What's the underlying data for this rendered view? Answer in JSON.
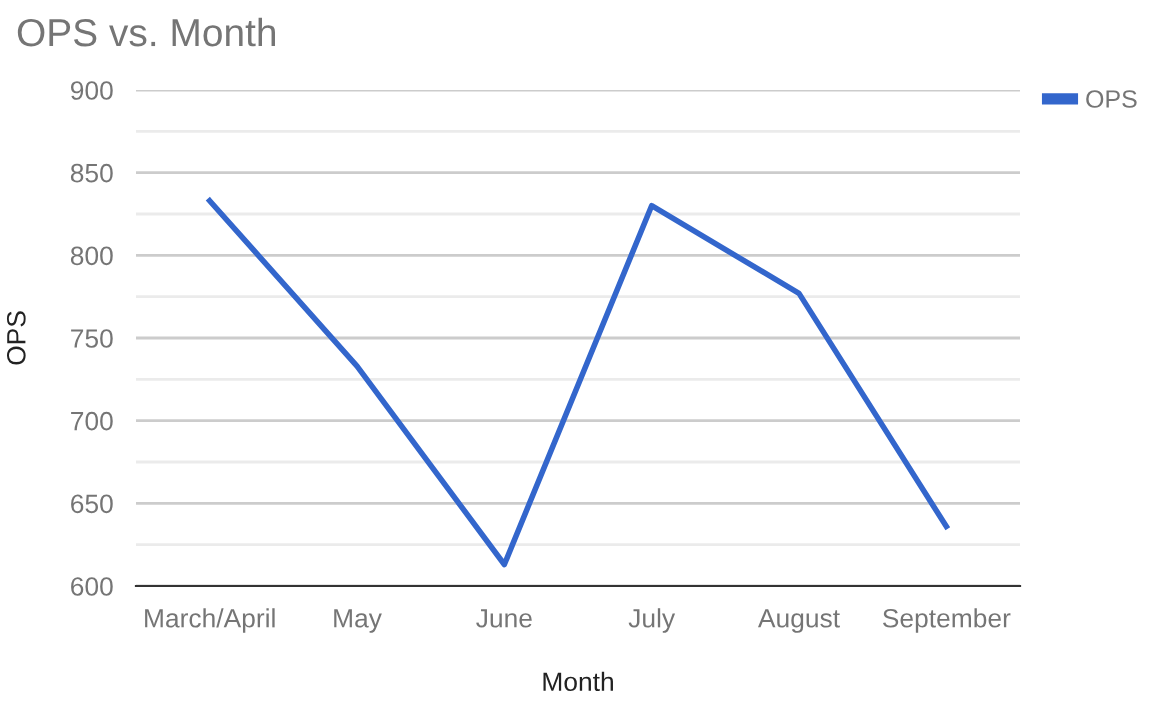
{
  "chart_data": {
    "type": "line",
    "title": "OPS vs. Month",
    "xlabel": "Month",
    "ylabel": "OPS",
    "categories": [
      "March/April",
      "May",
      "June",
      "July",
      "August",
      "September"
    ],
    "series": [
      {
        "name": "OPS",
        "color": "#3366cc",
        "values": [
          833,
          733,
          613,
          830,
          777,
          636
        ]
      }
    ],
    "ylim": [
      600,
      900
    ],
    "yticks": [
      600,
      {
        "value": 625,
        "label": null
      },
      650,
      {
        "value": 675,
        "label": null
      },
      700,
      {
        "value": 725,
        "label": null
      },
      750,
      {
        "value": 775,
        "label": null
      },
      800,
      {
        "value": 825,
        "label": null
      },
      850,
      {
        "value": 875,
        "label": null
      },
      900
    ],
    "grid": "y",
    "legend": "top right",
    "marker": "none",
    "line_style": "solid"
  }
}
